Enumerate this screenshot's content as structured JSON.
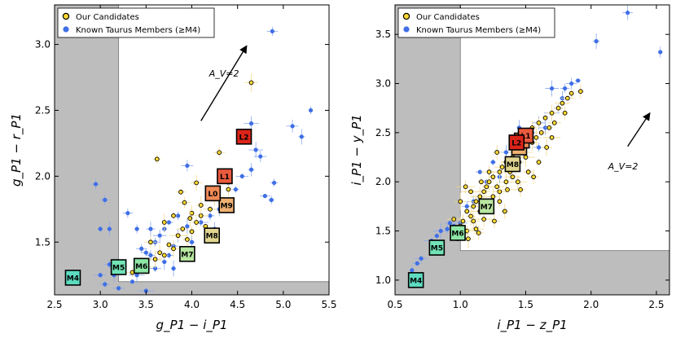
{
  "chart_data": [
    {
      "type": "scatter",
      "panel": "left",
      "xlabel": "g_P1 − i_P1",
      "ylabel": "g_P1 − r_P1",
      "xlim": [
        2.5,
        5.5
      ],
      "ylim": [
        1.1,
        3.3
      ],
      "xticks": [
        "2.5",
        "3.0",
        "3.5",
        "4.0",
        "4.5",
        "5.0",
        "5.5"
      ],
      "yticks": [
        "1.5",
        "2.0",
        "2.5",
        "3.0"
      ],
      "legend": {
        "position": "top-left",
        "entries": [
          "Our Candidates",
          "Known Taurus Members (≥M4)"
        ]
      },
      "excluded_region": {
        "x_below": 3.2,
        "y_below": 1.2
      },
      "reddening_vector": {
        "label": "A_V=2",
        "from": [
          4.1,
          2.42
        ],
        "to": [
          4.6,
          2.99
        ]
      },
      "spectral_types": [
        {
          "label": "M4",
          "x": 2.7,
          "y": 1.23,
          "color": "#5ddbc0"
        },
        {
          "label": "M5",
          "x": 3.2,
          "y": 1.31,
          "color": "#72e3b6"
        },
        {
          "label": "M6",
          "x": 3.45,
          "y": 1.32,
          "color": "#8de6a6"
        },
        {
          "label": "M7",
          "x": 3.95,
          "y": 1.41,
          "color": "#b8e6a0"
        },
        {
          "label": "M8",
          "x": 4.22,
          "y": 1.55,
          "color": "#e1d691"
        },
        {
          "label": "M9",
          "x": 4.38,
          "y": 1.78,
          "color": "#f0b071"
        },
        {
          "label": "L0",
          "x": 4.23,
          "y": 1.87,
          "color": "#f08a57"
        },
        {
          "label": "L1",
          "x": 4.36,
          "y": 2.0,
          "color": "#ea5a3d"
        },
        {
          "label": "L2",
          "x": 4.57,
          "y": 2.3,
          "color": "#dc2419"
        }
      ],
      "series": [
        {
          "name": "Our Candidates",
          "points": [
            [
              3.35,
              1.27
            ],
            [
              3.45,
              1.36
            ],
            [
              3.5,
              1.31
            ],
            [
              3.6,
              1.37
            ],
            [
              3.65,
              1.42
            ],
            [
              3.7,
              1.4
            ],
            [
              3.75,
              1.48
            ],
            [
              3.8,
              1.45
            ],
            [
              3.85,
              1.55
            ],
            [
              3.9,
              1.6
            ],
            [
              3.95,
              1.52
            ],
            [
              4.0,
              1.58
            ],
            [
              4.05,
              1.65
            ],
            [
              4.1,
              1.7
            ],
            [
              4.15,
              1.62
            ],
            [
              4.2,
              1.75
            ],
            [
              3.88,
              1.88
            ],
            [
              3.92,
              1.8
            ],
            [
              4.0,
              1.72
            ],
            [
              4.05,
              1.95
            ],
            [
              4.1,
              1.78
            ],
            [
              4.25,
              1.83
            ],
            [
              4.35,
              1.82
            ],
            [
              3.7,
              1.65
            ],
            [
              3.8,
              1.7
            ],
            [
              3.62,
              2.13
            ],
            [
              4.4,
              1.9
            ],
            [
              4.3,
              2.18
            ],
            [
              4.65,
              2.71
            ],
            [
              3.55,
              1.5
            ],
            [
              3.98,
              1.68
            ]
          ]
        },
        {
          "name": "Known Taurus Members (≥M4)",
          "points": [
            [
              2.95,
              1.94
            ],
            [
              3.0,
              1.6
            ],
            [
              3.05,
              1.82
            ],
            [
              3.1,
              1.6
            ],
            [
              3.1,
              1.33
            ],
            [
              3.15,
              1.25
            ],
            [
              3.0,
              1.25
            ],
            [
              3.05,
              1.18
            ],
            [
              3.2,
              1.15
            ],
            [
              3.3,
              1.72
            ],
            [
              3.35,
              1.2
            ],
            [
              3.4,
              1.25
            ],
            [
              3.4,
              1.6
            ],
            [
              3.5,
              1.13
            ],
            [
              3.55,
              1.4
            ],
            [
              3.6,
              1.3
            ],
            [
              3.7,
              1.35
            ],
            [
              3.75,
              1.4
            ],
            [
              3.8,
              1.47
            ],
            [
              3.85,
              1.55
            ],
            [
              3.9,
              1.42
            ],
            [
              3.95,
              1.62
            ],
            [
              4.0,
              1.5
            ],
            [
              3.5,
              1.42
            ],
            [
              3.6,
              1.5
            ],
            [
              3.65,
              1.55
            ],
            [
              3.7,
              1.6
            ],
            [
              3.75,
              1.65
            ],
            [
              3.85,
              1.7
            ],
            [
              3.95,
              2.08
            ],
            [
              4.1,
              1.65
            ],
            [
              4.2,
              1.7
            ],
            [
              4.3,
              1.75
            ],
            [
              4.4,
              1.95
            ],
            [
              4.48,
              1.9
            ],
            [
              4.55,
              2.0
            ],
            [
              4.65,
              2.05
            ],
            [
              4.7,
              2.2
            ],
            [
              4.65,
              2.4
            ],
            [
              4.75,
              2.15
            ],
            [
              4.8,
              1.85
            ],
            [
              4.9,
              1.95
            ],
            [
              4.87,
              1.82
            ],
            [
              5.1,
              2.38
            ],
            [
              5.2,
              2.3
            ],
            [
              5.3,
              2.5
            ],
            [
              4.88,
              3.1
            ],
            [
              3.8,
              1.3
            ],
            [
              3.55,
              1.6
            ],
            [
              3.45,
              1.45
            ],
            [
              4.25,
              1.6
            ]
          ]
        }
      ]
    },
    {
      "type": "scatter",
      "panel": "right",
      "xlabel": "i_P1 − z_P1",
      "ylabel": "i_P1 − y_P1",
      "xlim": [
        0.5,
        2.6
      ],
      "ylim": [
        0.85,
        3.8
      ],
      "xticks": [
        "0.5",
        "1.0",
        "1.5",
        "2.0",
        "2.5"
      ],
      "yticks": [
        "1.0",
        "1.5",
        "2.0",
        "2.5",
        "3.0",
        "3.5"
      ],
      "legend": {
        "position": "top-left",
        "entries": [
          "Our Candidates",
          "Known Taurus Members (≥M4)"
        ]
      },
      "excluded_region": {
        "x_below": 1.0,
        "y_below": 1.3
      },
      "reddening_vector": {
        "label": "A_V=2",
        "from": [
          2.28,
          2.36
        ],
        "to": [
          2.45,
          2.7
        ]
      },
      "spectral_types": [
        {
          "label": "M4",
          "x": 0.66,
          "y": 1.0,
          "color": "#5ddbc0"
        },
        {
          "label": "M5",
          "x": 0.82,
          "y": 1.33,
          "color": "#72e3b6"
        },
        {
          "label": "M6",
          "x": 0.98,
          "y": 1.48,
          "color": "#8de6a6"
        },
        {
          "label": "M7",
          "x": 1.2,
          "y": 1.75,
          "color": "#b8e6a0"
        },
        {
          "label": "M8",
          "x": 1.4,
          "y": 2.18,
          "color": "#e1d691"
        },
        {
          "label": "M9",
          "x": 1.45,
          "y": 2.35,
          "color": "#f0b071"
        },
        {
          "label": "L0",
          "x": 1.47,
          "y": 2.42,
          "color": "#f08a57"
        },
        {
          "label": "L1",
          "x": 1.5,
          "y": 2.47,
          "color": "#ea5a3d"
        },
        {
          "label": "L2",
          "x": 1.43,
          "y": 2.4,
          "color": "#dc2419"
        }
      ],
      "series": [
        {
          "name": "Our Candidates",
          "points": [
            [
              1.0,
              1.55
            ],
            [
              1.02,
              1.6
            ],
            [
              1.05,
              1.5
            ],
            [
              1.05,
              1.7
            ],
            [
              1.08,
              1.65
            ],
            [
              1.1,
              1.75
            ],
            [
              1.1,
              1.6
            ],
            [
              1.12,
              1.8
            ],
            [
              1.15,
              1.85
            ],
            [
              1.15,
              1.7
            ],
            [
              1.18,
              1.9
            ],
            [
              1.2,
              1.95
            ],
            [
              1.2,
              1.8
            ],
            [
              1.22,
              2.0
            ],
            [
              1.25,
              1.85
            ],
            [
              1.25,
              2.05
            ],
            [
              1.28,
              1.95
            ],
            [
              1.3,
              2.1
            ],
            [
              1.3,
              1.9
            ],
            [
              1.32,
              2.15
            ],
            [
              1.35,
              2.0
            ],
            [
              1.35,
              2.2
            ],
            [
              1.38,
              2.1
            ],
            [
              1.4,
              2.25
            ],
            [
              1.4,
              2.05
            ],
            [
              1.42,
              2.3
            ],
            [
              1.45,
              2.2
            ],
            [
              1.45,
              2.4
            ],
            [
              1.48,
              2.3
            ],
            [
              1.5,
              2.45
            ],
            [
              1.5,
              2.25
            ],
            [
              1.52,
              2.5
            ],
            [
              1.55,
              2.4
            ],
            [
              1.55,
              2.55
            ],
            [
              1.58,
              2.45
            ],
            [
              1.6,
              2.6
            ],
            [
              1.62,
              2.5
            ],
            [
              1.65,
              2.65
            ],
            [
              1.68,
              2.55
            ],
            [
              1.7,
              2.7
            ],
            [
              1.72,
              2.6
            ],
            [
              1.75,
              2.75
            ],
            [
              1.78,
              2.8
            ],
            [
              1.8,
              2.7
            ],
            [
              1.82,
              2.85
            ],
            [
              1.85,
              2.9
            ],
            [
              1.92,
              2.92
            ],
            [
              1.06,
              1.42
            ],
            [
              1.12,
              1.52
            ],
            [
              1.18,
              1.62
            ],
            [
              1.24,
              1.72
            ],
            [
              1.3,
              1.8
            ],
            [
              1.36,
              1.92
            ],
            [
              1.44,
              2.0
            ],
            [
              1.52,
              2.1
            ],
            [
              1.6,
              2.2
            ],
            [
              1.0,
              1.8
            ],
            [
              1.08,
              1.9
            ],
            [
              1.16,
              2.0
            ],
            [
              1.22,
              2.1
            ],
            [
              1.28,
              2.3
            ],
            [
              1.14,
              1.48
            ],
            [
              0.98,
              1.42
            ],
            [
              0.95,
              1.62
            ],
            [
              1.04,
              1.95
            ],
            [
              1.26,
              1.6
            ],
            [
              1.34,
              1.7
            ],
            [
              1.46,
              1.92
            ],
            [
              1.56,
              2.05
            ],
            [
              1.66,
              2.35
            ],
            [
              1.7,
              2.45
            ]
          ]
        },
        {
          "name": "Known Taurus Members (≥M4)",
          "points": [
            [
              0.63,
              1.1
            ],
            [
              0.67,
              1.17
            ],
            [
              0.7,
              1.22
            ],
            [
              0.78,
              1.4
            ],
            [
              0.82,
              1.45
            ],
            [
              0.85,
              1.5
            ],
            [
              0.9,
              1.52
            ],
            [
              0.92,
              1.58
            ],
            [
              0.95,
              1.55
            ],
            [
              1.0,
              1.58
            ],
            [
              1.05,
              1.75
            ],
            [
              1.1,
              1.8
            ],
            [
              1.15,
              2.1
            ],
            [
              1.2,
              2.0
            ],
            [
              1.25,
              2.2
            ],
            [
              1.3,
              2.05
            ],
            [
              1.35,
              2.3
            ],
            [
              1.4,
              2.2
            ],
            [
              1.5,
              2.35
            ],
            [
              1.55,
              2.5
            ],
            [
              1.6,
              2.6
            ],
            [
              1.65,
              2.55
            ],
            [
              1.7,
              2.7
            ],
            [
              1.75,
              2.75
            ],
            [
              1.78,
              2.85
            ],
            [
              1.8,
              2.95
            ],
            [
              1.85,
              3.0
            ],
            [
              1.9,
              3.03
            ],
            [
              2.04,
              3.43
            ],
            [
              2.28,
              3.72
            ],
            [
              2.53,
              3.32
            ],
            [
              1.7,
              2.95
            ],
            [
              1.6,
              2.35
            ],
            [
              1.45,
              2.55
            ]
          ]
        }
      ]
    }
  ]
}
